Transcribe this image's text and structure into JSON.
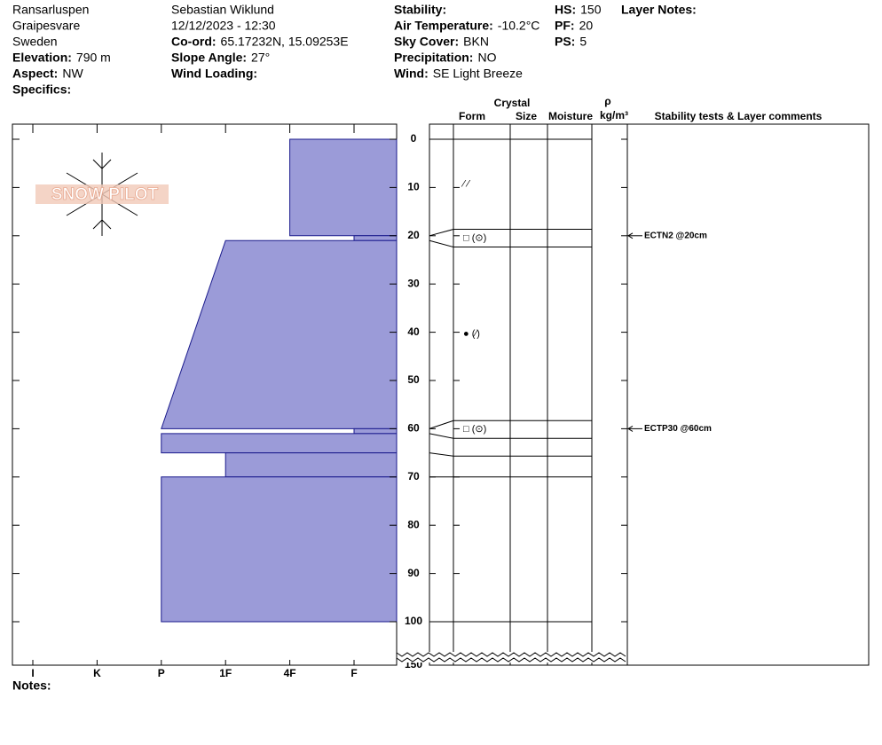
{
  "header": {
    "columns": [
      [
        {
          "text": "Ransarluspen"
        },
        {
          "text": "Graipesvare"
        },
        {
          "text": "Sweden"
        },
        {
          "label": "Elevation:",
          "value": "790 m"
        },
        {
          "label": "Aspect:",
          "value": "NW"
        },
        {
          "label": "Specifics:"
        }
      ],
      [
        {
          "text": "Sebastian Wiklund"
        },
        {
          "text": "12/12/2023 - 12:30"
        },
        {
          "label": "Co-ord:",
          "value": "65.17232N, 15.09253E"
        },
        {
          "label": "Slope Angle:",
          "value": "27°"
        },
        {
          "label": "Wind Loading:"
        }
      ],
      [
        {
          "label": "Stability:"
        },
        {
          "label": "Air Temperature:",
          "value": "-10.2°C"
        },
        {
          "label": "Sky Cover:",
          "value": "BKN"
        },
        {
          "label": "Precipitation:",
          "value": "NO"
        },
        {
          "label": "Wind:",
          "value": "SE  Light Breeze"
        }
      ],
      [
        {
          "label": "HS:",
          "value": "150"
        },
        {
          "label": "PF:",
          "value": "20"
        },
        {
          "label": "PS:",
          "value": "5"
        }
      ],
      [
        {
          "label": "Layer Notes:"
        }
      ]
    ]
  },
  "notes_label": "Notes:",
  "logo": "SNOW PILOT",
  "chart_data": {
    "type": "snow-profile",
    "column_headers": {
      "crystal": "Crystal",
      "form": "Form",
      "size": "Size",
      "moisture": "Moisture",
      "rho": "ρ",
      "rho_unit": "kg/m³",
      "comments": "Stability tests & Layer comments"
    },
    "hardness_categories": [
      "I",
      "K",
      "P",
      "1F",
      "4F",
      "F"
    ],
    "ylim": [
      0,
      150
    ],
    "yticks": [
      0,
      10,
      20,
      30,
      40,
      50,
      60,
      70,
      80,
      90,
      100,
      150
    ],
    "layers": [
      {
        "top": 0,
        "bottom": 20,
        "hardness_top": 4,
        "hardness_bottom": 4,
        "form": "⁄ ⁄"
      },
      {
        "top": 20,
        "bottom": 21,
        "hardness_top": 5,
        "hardness_bottom": 5,
        "form": "□ (⊙)"
      },
      {
        "top": 21,
        "bottom": 60,
        "hardness_top": 3,
        "hardness_bottom": 2,
        "form": "● (⁄)"
      },
      {
        "top": 60,
        "bottom": 61,
        "hardness_top": 5,
        "hardness_bottom": 5,
        "form": "□ (⊙)"
      },
      {
        "top": 61,
        "bottom": 65,
        "hardness_top": 2,
        "hardness_bottom": 2
      },
      {
        "top": 65,
        "bottom": 70,
        "hardness_top": 3,
        "hardness_bottom": 3
      },
      {
        "top": 70,
        "bottom": 100,
        "hardness_top": 2,
        "hardness_bottom": 2
      }
    ],
    "color": "#9b9bd8",
    "stability_tests": [
      {
        "depth": 20,
        "text": "ECTN2 @20cm"
      },
      {
        "depth": 60,
        "text": "ECTP30 @60cm"
      }
    ]
  }
}
